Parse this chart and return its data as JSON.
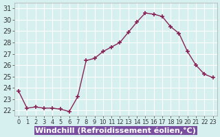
{
  "x": [
    0,
    1,
    2,
    3,
    4,
    5,
    6,
    7,
    8,
    9,
    10,
    11,
    12,
    13,
    14,
    15,
    16,
    17,
    18,
    19,
    20,
    21,
    22,
    23
  ],
  "y": [
    23.7,
    22.2,
    22.3,
    22.2,
    22.2,
    22.1,
    21.9,
    23.2,
    26.4,
    26.6,
    27.2,
    27.6,
    28.0,
    28.9,
    29.8,
    30.6,
    30.5,
    30.3,
    29.4,
    28.8,
    27.2,
    26.0,
    25.2,
    24.9
  ],
  "line_color": "#882255",
  "marker": "+",
  "marker_size": 5,
  "bg_color": "#d6f0f0",
  "grid_color": "#ffffff",
  "xlabel": "Windchill (Refroidissement éolien,°C)",
  "xlabel_bg": "#7b4fa0",
  "xlabel_color": "#ffffff",
  "ylabel_ticks": [
    22,
    23,
    24,
    25,
    26,
    27,
    28,
    29,
    30,
    31
  ],
  "xtick_labels": [
    "0",
    "1",
    "2",
    "3",
    "4",
    "5",
    "6",
    "7",
    "8",
    "9",
    "10",
    "11",
    "12",
    "13",
    "14",
    "15",
    "16",
    "17",
    "18",
    "19",
    "20",
    "21",
    "22",
    "23"
  ],
  "ylim": [
    21.5,
    31.5
  ],
  "xlim": [
    -0.5,
    23.5
  ],
  "title": "",
  "tick_fontsize": 7,
  "xlabel_fontsize": 8
}
